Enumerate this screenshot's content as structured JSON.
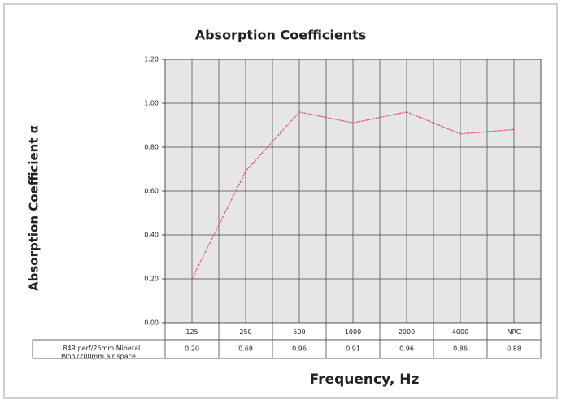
{
  "chart_data": {
    "type": "line",
    "title": "Absorption Coefficients",
    "ylabel": "Absorption Coefficient α",
    "xlabel": "Frequency, Hz",
    "categories": [
      "125",
      "250",
      "500",
      "1000",
      "2000",
      "4000",
      "NRC"
    ],
    "series": [
      {
        "name": "...84R perf/25mm Mineral Wool/200mm air space",
        "color": "#e0505e",
        "values": [
          0.2,
          0.69,
          0.96,
          0.91,
          0.96,
          0.86,
          0.88
        ],
        "value_labels": [
          "0.20",
          "0.69",
          "0.96",
          "0.91",
          "0.96",
          "0.86",
          "0.88"
        ]
      }
    ],
    "ylim": [
      0,
      1.2
    ],
    "yticks": [
      {
        "value": 0,
        "label": "0.00"
      },
      {
        "value": 0.2,
        "label": "0.20"
      },
      {
        "value": 0.4,
        "label": "0.40"
      },
      {
        "value": 0.6,
        "label": "0.60"
      },
      {
        "value": 0.8,
        "label": "0.80"
      },
      {
        "value": 1,
        "label": "1.00"
      },
      {
        "value": 1.2,
        "label": "1.20"
      }
    ],
    "grid": true
  }
}
